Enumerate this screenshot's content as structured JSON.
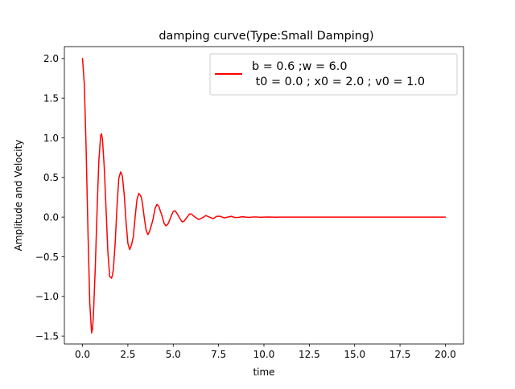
{
  "chart_data": {
    "type": "line",
    "title": "damping curve(Type:Small Damping)",
    "xlabel": "time",
    "ylabel": "Amplitude and Velocity",
    "xlim": [
      -1.0,
      21.0
    ],
    "ylim": [
      -1.6,
      2.15
    ],
    "x_ticks": [
      0.0,
      2.5,
      5.0,
      7.5,
      10.0,
      12.5,
      15.0,
      17.5,
      20.0
    ],
    "x_tick_labels": [
      "0.0",
      "2.5",
      "5.0",
      "7.5",
      "10.0",
      "12.5",
      "15.0",
      "17.5",
      "20.0"
    ],
    "y_ticks": [
      -1.5,
      -1.0,
      -0.5,
      0.0,
      0.5,
      1.0,
      1.5,
      2.0
    ],
    "y_tick_labels": [
      "−1.5",
      "−1.0",
      "−0.5",
      "0.0",
      "0.5",
      "1.0",
      "1.5",
      "2.0"
    ],
    "grid": false,
    "legend_position": "top-right",
    "series": [
      {
        "name": "b = 0.6 ;w = 6.0\n t0 = 0.0 ; x0 = 2.0 ; v0 = 1.0",
        "color": "#ff0000",
        "x": [
          0.0,
          0.1,
          0.2,
          0.3,
          0.4,
          0.5,
          0.55,
          0.6,
          0.7,
          0.8,
          0.9,
          1.0,
          1.05,
          1.1,
          1.2,
          1.3,
          1.4,
          1.5,
          1.6,
          1.65,
          1.7,
          1.8,
          1.9,
          2.0,
          2.1,
          2.15,
          2.2,
          2.3,
          2.4,
          2.5,
          2.6,
          2.7,
          2.75,
          2.8,
          2.9,
          3.0,
          3.1,
          3.2,
          3.25,
          3.3,
          3.4,
          3.5,
          3.6,
          3.7,
          3.8,
          3.85,
          3.9,
          4.0,
          4.1,
          4.2,
          4.3,
          4.35,
          4.4,
          4.5,
          4.6,
          4.7,
          4.8,
          4.9,
          5.0,
          5.1,
          5.2,
          5.3,
          5.4,
          5.5,
          5.6,
          5.7,
          5.8,
          5.9,
          6.0,
          6.2,
          6.4,
          6.6,
          6.8,
          7.0,
          7.2,
          7.4,
          7.6,
          7.8,
          8.0,
          8.2,
          8.4,
          8.6,
          8.8,
          9.0,
          9.2,
          9.4,
          9.6,
          9.8,
          10.0,
          10.3,
          10.6,
          10.9,
          11.2,
          11.5,
          12.0,
          12.5,
          13.0,
          14.0,
          15.0,
          16.0,
          17.0,
          18.0,
          19.0,
          20.0
        ],
        "y": [
          2.0,
          1.67,
          0.86,
          -0.18,
          -1.08,
          -1.46,
          -1.41,
          -1.24,
          -0.66,
          0.07,
          0.71,
          1.03,
          1.05,
          0.98,
          0.62,
          0.09,
          -0.45,
          -0.75,
          -0.77,
          -0.73,
          -0.66,
          -0.33,
          0.13,
          0.49,
          0.57,
          0.55,
          0.51,
          0.28,
          -0.06,
          -0.33,
          -0.41,
          -0.35,
          -0.3,
          -0.25,
          0.0,
          0.22,
          0.3,
          0.27,
          0.24,
          0.18,
          0.0,
          -0.16,
          -0.22,
          -0.18,
          -0.1,
          -0.06,
          -0.01,
          0.11,
          0.16,
          0.14,
          0.07,
          0.04,
          0.0,
          -0.08,
          -0.11,
          -0.09,
          -0.04,
          0.02,
          0.07,
          0.08,
          0.05,
          0.01,
          -0.03,
          -0.06,
          -0.05,
          -0.02,
          0.01,
          0.04,
          0.04,
          0.0,
          -0.03,
          -0.01,
          0.02,
          0.0,
          -0.02,
          0.01,
          0.01,
          -0.01,
          0.0,
          0.01,
          -0.005,
          -0.004,
          0.005,
          0.0,
          -0.004,
          0.002,
          0.002,
          -0.002,
          0.0,
          0.001,
          -0.001,
          0.0,
          0.0,
          0.0,
          0.0,
          0.0,
          0.0,
          0.0,
          0.0,
          0.0,
          0.0,
          0.0,
          0.0,
          0.0
        ]
      }
    ]
  }
}
